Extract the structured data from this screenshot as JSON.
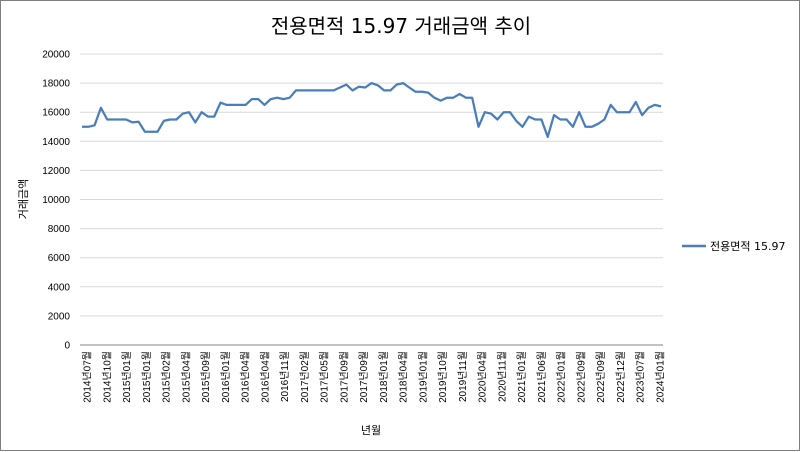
{
  "chart_data": {
    "type": "line",
    "title": "전용면적 15.97 거래금액 추이",
    "xlabel": "년월",
    "ylabel": "거래금액",
    "ylim": [
      0,
      20000
    ],
    "yticks": [
      0,
      2000,
      4000,
      6000,
      8000,
      10000,
      12000,
      14000,
      16000,
      18000,
      20000
    ],
    "grid": true,
    "legend_position": "right",
    "x_tick_labels": [
      "2014년07월",
      "2014년10월",
      "2015년01월",
      "2015년01월",
      "2015년02월",
      "2015년04월",
      "2015년09월",
      "2016년01월",
      "2016년04월",
      "2016년04월",
      "2016년11월",
      "2017년02월",
      "2017년05월",
      "2017년09월",
      "2017년09월",
      "2018년01월",
      "2018년04월",
      "2019년01월",
      "2019년10월",
      "2019년11월",
      "2020년04월",
      "2020년11월",
      "2021년01월",
      "2021년06월",
      "2022년01월",
      "2022년09월",
      "2022년09월",
      "2022년12월",
      "2023년07월",
      "2024년01월"
    ],
    "series": [
      {
        "name": "전용면적 15.97",
        "color": "#4a7ebb",
        "values": [
          15000,
          15000,
          15100,
          16300,
          15500,
          15500,
          15500,
          15500,
          15300,
          15350,
          14650,
          14650,
          14650,
          15400,
          15500,
          15500,
          15900,
          16000,
          15300,
          16000,
          15700,
          15700,
          16650,
          16500,
          16500,
          16500,
          16500,
          16900,
          16900,
          16500,
          16900,
          17000,
          16900,
          17000,
          17500,
          17500,
          17500,
          17500,
          17500,
          17500,
          17500,
          17700,
          17900,
          17500,
          17750,
          17700,
          18000,
          17850,
          17500,
          17500,
          17900,
          18000,
          17700,
          17400,
          17400,
          17350,
          17000,
          16800,
          17000,
          17000,
          17250,
          17000,
          17000,
          15000,
          16000,
          15900,
          15500,
          16000,
          16000,
          15400,
          15000,
          15700,
          15500,
          15500,
          14300,
          15800,
          15500,
          15500,
          15000,
          16000,
          15000,
          15000,
          15200,
          15500,
          16500,
          16000,
          16000,
          16000,
          16700,
          15800,
          16300,
          16500,
          16400
        ]
      }
    ]
  }
}
